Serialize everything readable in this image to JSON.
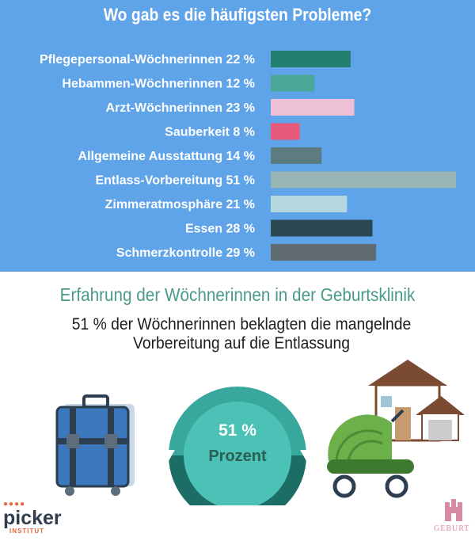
{
  "title": "Wo gab es die häufigsten Probleme?",
  "chart_data": {
    "type": "bar",
    "orientation": "horizontal",
    "categories": [
      "Pflegepersonal-Wöchnerinnen",
      "Hebammen-Wöchnerinnen",
      "Arzt-Wöchnerinnen",
      "Sauberkeit",
      "Allgemeine Ausstattung",
      "Entlass-Vorbereitung",
      "Zimmeratmosphäre",
      "Essen",
      "Schmerzkontrolle"
    ],
    "values": [
      22,
      12,
      23,
      8,
      14,
      51,
      21,
      28,
      29
    ],
    "labels": [
      "Pflegepersonal-Wöchnerinnen 22 %",
      "Hebammen-Wöchnerinnen 12 %",
      "Arzt-Wöchnerinnen 23 %",
      "Sauberkeit 8 %",
      "Allgemeine Ausstattung 14 %",
      "Entlass-Vorbereitung 51 %",
      "Zimmeratmosphäre 21 %",
      "Essen 28 %",
      "Schmerzkontrolle 29 %"
    ],
    "colors": [
      "#23806f",
      "#4aa798",
      "#edc0d6",
      "#e85a7c",
      "#5c7c82",
      "#9ab5b5",
      "#b5d8e0",
      "#2c4752",
      "#616b72"
    ],
    "title": "Wo gab es die häufigsten Probleme?"
  },
  "info": {
    "subtitle": "Erfahrung der Wöchnerinnen in der Geburtsklinik",
    "statement_line1": "51 % der Wöchnerinnen beklagten die mangelnde",
    "statement_line2": "Vorbereitung auf die Entlassung",
    "pie_value": "51 %",
    "pie_unit": "Prozent",
    "pie_fraction": 0.51,
    "ring_colors": {
      "top": "#38a79c",
      "bottom": "#1b6d65",
      "center": "#4bc2b5"
    }
  },
  "logos": {
    "left_dots": "●●●●",
    "left_word": "picker",
    "left_sub": "INSTITUT",
    "right_word": "GEBURT"
  },
  "icons": [
    "suitcase-icon",
    "house-icon",
    "stroller-icon"
  ]
}
